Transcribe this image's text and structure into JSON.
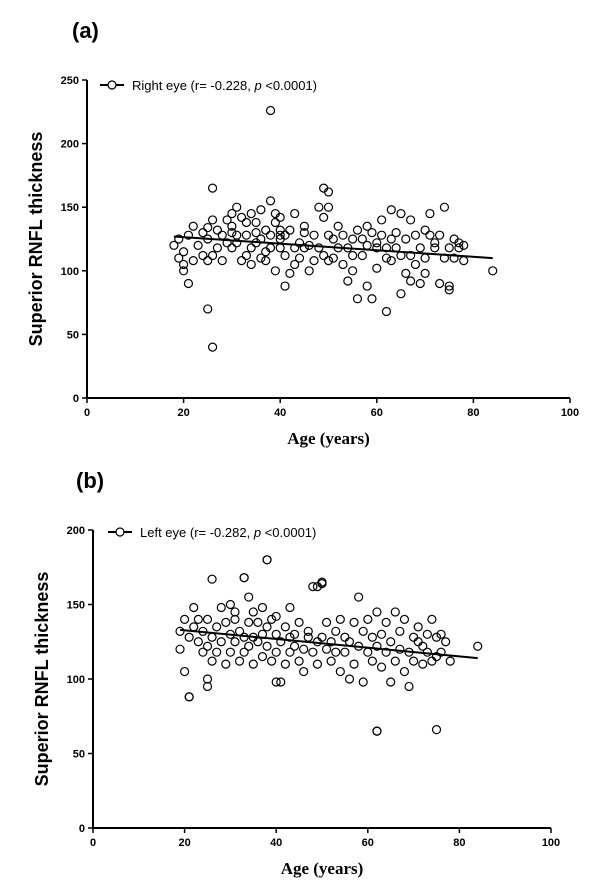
{
  "chart_data": [
    {
      "type": "scatter",
      "panel_label": "(a)",
      "xlabel": "Age (years)",
      "ylabel": "Superior RNFL thickness",
      "xlim": [
        0,
        100
      ],
      "ylim": [
        0,
        250
      ],
      "xticks": [
        0,
        20,
        40,
        60,
        80,
        100
      ],
      "yticks": [
        0,
        50,
        100,
        150,
        200,
        250
      ],
      "legend": {
        "marker": "open-circle",
        "text": "Right eye (r= -0.228, ",
        "p_symbol": "p",
        "p_value": " <0.0001)",
        "position": "top-left"
      },
      "trendline": {
        "x": [
          18,
          84
        ],
        "y": [
          127,
          110
        ]
      },
      "x": [
        18,
        19,
        19,
        20,
        20,
        20,
        21,
        21,
        22,
        22,
        23,
        24,
        24,
        25,
        25,
        25,
        26,
        26,
        26,
        27,
        27,
        28,
        28,
        29,
        29,
        30,
        30,
        30,
        31,
        31,
        31,
        32,
        32,
        33,
        33,
        33,
        34,
        34,
        34,
        35,
        35,
        35,
        36,
        36,
        36,
        37,
        37,
        37,
        38,
        38,
        38,
        39,
        39,
        39,
        40,
        40,
        40,
        40,
        41,
        41,
        41,
        42,
        42,
        43,
        43,
        43,
        44,
        44,
        45,
        45,
        46,
        46,
        47,
        47,
        48,
        48,
        49,
        49,
        50,
        50,
        50,
        51,
        51,
        52,
        52,
        53,
        53,
        54,
        54,
        55,
        55,
        55,
        56,
        56,
        57,
        57,
        58,
        58,
        58,
        59,
        59,
        60,
        60,
        60,
        61,
        61,
        62,
        62,
        62,
        63,
        63,
        63,
        64,
        64,
        65,
        65,
        65,
        66,
        66,
        67,
        67,
        67,
        68,
        68,
        69,
        69,
        70,
        70,
        70,
        71,
        71,
        72,
        72,
        73,
        73,
        74,
        74,
        75,
        75,
        75,
        76,
        76,
        77,
        77,
        78,
        78,
        84,
        25,
        38,
        26,
        49,
        50,
        30,
        40,
        45
      ],
      "y": [
        120,
        110,
        125,
        100,
        105,
        115,
        90,
        128,
        135,
        108,
        120,
        130,
        112,
        70,
        108,
        125,
        165,
        140,
        112,
        118,
        132,
        108,
        128,
        122,
        140,
        118,
        145,
        135,
        150,
        122,
        128,
        108,
        142,
        112,
        138,
        128,
        145,
        118,
        105,
        122,
        130,
        138,
        110,
        148,
        125,
        115,
        132,
        108,
        155,
        128,
        118,
        100,
        138,
        145,
        125,
        118,
        132,
        142,
        88,
        112,
        128,
        98,
        132,
        118,
        145,
        105,
        122,
        110,
        130,
        118,
        100,
        120,
        108,
        128,
        150,
        118,
        112,
        165,
        128,
        150,
        162,
        110,
        125,
        118,
        135,
        105,
        128,
        92,
        118,
        100,
        125,
        112,
        78,
        132,
        112,
        125,
        88,
        120,
        135,
        78,
        130,
        122,
        118,
        102,
        128,
        140,
        118,
        68,
        110,
        148,
        125,
        108,
        118,
        130,
        112,
        145,
        82,
        125,
        98,
        112,
        140,
        92,
        128,
        105,
        118,
        90,
        132,
        110,
        98,
        128,
        145,
        118,
        122,
        128,
        90,
        110,
        150,
        118,
        85,
        88,
        125,
        110,
        122,
        118,
        108,
        120,
        100,
        134,
        226,
        40,
        142,
        108,
        130,
        128,
        135
      ]
    },
    {
      "type": "scatter",
      "panel_label": "(b)",
      "xlabel": "Age (years)",
      "ylabel": "Superior RNFL thickness",
      "xlim": [
        0,
        100
      ],
      "ylim": [
        0,
        200
      ],
      "xticks": [
        0,
        20,
        40,
        60,
        80,
        100
      ],
      "yticks": [
        0,
        50,
        100,
        150,
        200
      ],
      "legend": {
        "marker": "open-circle",
        "text": "Left eye (r= -0.282, ",
        "p_symbol": "p",
        "p_value": " <0.0001)",
        "position": "top-left"
      },
      "trendline": {
        "x": [
          19,
          84
        ],
        "y": [
          133,
          114
        ]
      },
      "x": [
        19,
        19,
        20,
        20,
        21,
        21,
        22,
        22,
        23,
        23,
        24,
        24,
        25,
        25,
        25,
        26,
        26,
        26,
        27,
        27,
        28,
        28,
        29,
        29,
        30,
        30,
        30,
        31,
        31,
        31,
        32,
        32,
        33,
        33,
        33,
        34,
        34,
        34,
        35,
        35,
        35,
        36,
        36,
        37,
        37,
        37,
        38,
        38,
        38,
        39,
        39,
        40,
        40,
        40,
        41,
        41,
        42,
        42,
        43,
        43,
        43,
        44,
        44,
        45,
        45,
        46,
        46,
        47,
        47,
        48,
        48,
        49,
        49,
        50,
        50,
        51,
        51,
        52,
        52,
        53,
        53,
        54,
        54,
        55,
        55,
        56,
        56,
        57,
        57,
        58,
        58,
        59,
        59,
        60,
        60,
        61,
        61,
        62,
        62,
        62,
        63,
        63,
        64,
        64,
        65,
        65,
        66,
        66,
        67,
        67,
        68,
        68,
        69,
        69,
        70,
        70,
        71,
        71,
        72,
        72,
        73,
        73,
        74,
        74,
        75,
        75,
        76,
        76,
        77,
        78,
        84,
        38,
        49,
        50,
        62,
        75,
        33,
        40,
        25,
        21
      ],
      "y": [
        120,
        132,
        105,
        140,
        128,
        88,
        135,
        148,
        125,
        140,
        118,
        132,
        95,
        122,
        140,
        167,
        128,
        112,
        135,
        118,
        148,
        125,
        110,
        138,
        130,
        150,
        118,
        140,
        125,
        145,
        112,
        132,
        168,
        128,
        118,
        155,
        122,
        138,
        110,
        145,
        128,
        125,
        138,
        115,
        130,
        148,
        180,
        122,
        135,
        112,
        140,
        130,
        118,
        142,
        98,
        125,
        135,
        110,
        128,
        148,
        118,
        122,
        130,
        112,
        138,
        120,
        105,
        128,
        132,
        118,
        162,
        125,
        110,
        164,
        128,
        120,
        138,
        112,
        125,
        118,
        132,
        105,
        140,
        118,
        128,
        100,
        125,
        138,
        110,
        155,
        122,
        98,
        132,
        118,
        140,
        112,
        128,
        65,
        122,
        145,
        108,
        130,
        118,
        138,
        98,
        125,
        112,
        145,
        120,
        132,
        105,
        140,
        118,
        95,
        128,
        112,
        125,
        135,
        110,
        122,
        130,
        118,
        140,
        112,
        128,
        115,
        118,
        130,
        125,
        112,
        122,
        180,
        162,
        165,
        65,
        66,
        168,
        98,
        100,
        88
      ]
    }
  ]
}
